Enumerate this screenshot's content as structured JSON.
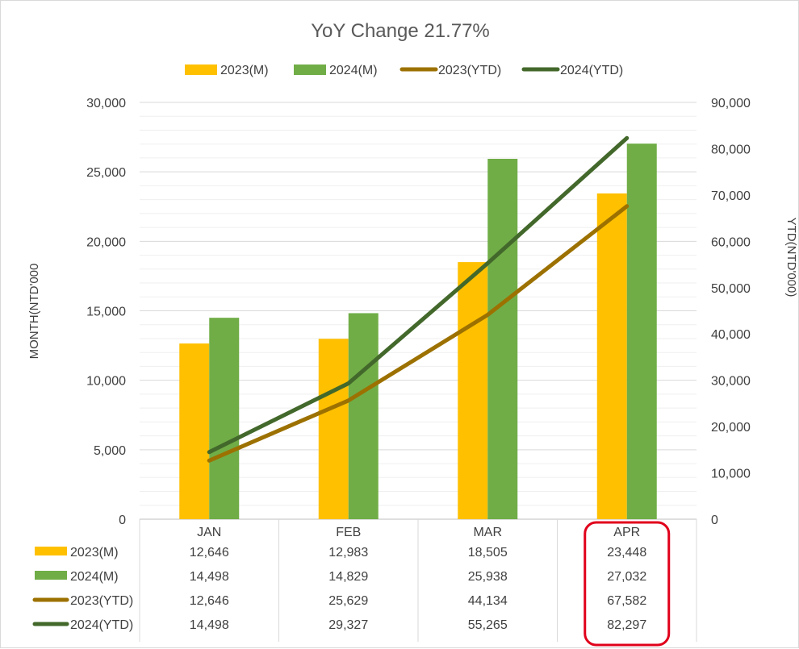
{
  "chart_data": {
    "type": "bar",
    "title": "YoY Change 21.77%",
    "categories": [
      "JAN",
      "FEB",
      "MAR",
      "APR"
    ],
    "y_left": {
      "label": "MONTH(NTD'000",
      "lim": [
        0,
        30000
      ],
      "ticks": [
        "0",
        "5,000",
        "10,000",
        "15,000",
        "20,000",
        "25,000",
        "30,000"
      ]
    },
    "y_right": {
      "label": "YTD(NTD'000)",
      "lim": [
        0,
        90000
      ],
      "ticks": [
        "0",
        "10,000",
        "20,000",
        "30,000",
        "40,000",
        "50,000",
        "60,000",
        "70,000",
        "80,000",
        "90,000"
      ]
    },
    "grid": true,
    "legend_position": "top",
    "series": [
      {
        "name": "2023(M)",
        "kind": "bar",
        "axis": "left",
        "color": "#FFC000",
        "values": [
          12646,
          12983,
          18505,
          23448
        ],
        "labels": [
          "12,646",
          "12,983",
          "18,505",
          "23,448"
        ]
      },
      {
        "name": "2024(M)",
        "kind": "bar",
        "axis": "left",
        "color": "#70AD47",
        "values": [
          14498,
          14829,
          25938,
          27032
        ],
        "labels": [
          "14,498",
          "14,829",
          "25,938",
          "27,032"
        ]
      },
      {
        "name": "2023(YTD)",
        "kind": "line",
        "axis": "right",
        "color": "#9C7100",
        "values": [
          12646,
          25629,
          44134,
          67582
        ],
        "labels": [
          "12,646",
          "25,629",
          "44,134",
          "67,582"
        ]
      },
      {
        "name": "2024(YTD)",
        "kind": "line",
        "axis": "right",
        "color": "#43682B",
        "values": [
          14498,
          29327,
          55265,
          82297
        ],
        "labels": [
          "14,498",
          "29,327",
          "55,265",
          "82,297"
        ]
      }
    ],
    "highlight": {
      "category": "APR",
      "color": "#E0001B"
    }
  }
}
